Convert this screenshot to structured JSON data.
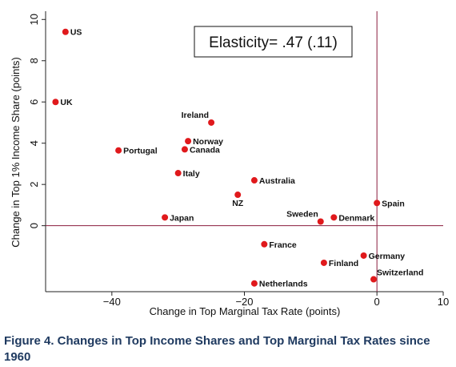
{
  "figure_caption": "Figure 4. Changes in Top Income Shares and Top Marginal Tax Rates since 1960",
  "colors": {
    "point": "#e0191c",
    "reference_line": "#8a1c3d",
    "axis": "#222222"
  },
  "chart_data": {
    "type": "scatter",
    "xlabel": "Change in Top Marginal Tax Rate (points)",
    "ylabel": "Change in Top 1% Income Share (points)",
    "xlim": [
      -50,
      10
    ],
    "ylim": [
      -3.2,
      10.4
    ],
    "x_ticks": [
      -40,
      -20,
      0,
      10
    ],
    "x_tick_labels": [
      "−40",
      "−20",
      "0",
      "10"
    ],
    "y_ticks": [
      0,
      2,
      4,
      6,
      8,
      10
    ],
    "y_tick_labels": [
      "0",
      "2",
      "4",
      "6",
      "8",
      "10"
    ],
    "grid": false,
    "reference_lines": {
      "x": 0,
      "y": 0
    },
    "annotation": "Elasticity= .47 (.11)",
    "points": [
      {
        "label": "US",
        "x": -47,
        "y": 9.4
      },
      {
        "label": "UK",
        "x": -48.5,
        "y": 6.0
      },
      {
        "label": "Ireland",
        "x": -25,
        "y": 5.0
      },
      {
        "label": "Norway",
        "x": -28.5,
        "y": 4.1
      },
      {
        "label": "Canada",
        "x": -29,
        "y": 3.7
      },
      {
        "label": "Portugal",
        "x": -39,
        "y": 3.65
      },
      {
        "label": "Italy",
        "x": -30,
        "y": 2.55
      },
      {
        "label": "Australia",
        "x": -18.5,
        "y": 2.2
      },
      {
        "label": "NZ",
        "x": -21,
        "y": 1.5
      },
      {
        "label": "Spain",
        "x": 0,
        "y": 1.1
      },
      {
        "label": "Japan",
        "x": -32,
        "y": 0.4
      },
      {
        "label": "Sweden",
        "x": -8.5,
        "y": 0.2
      },
      {
        "label": "Denmark",
        "x": -6.5,
        "y": 0.4
      },
      {
        "label": "France",
        "x": -17,
        "y": -0.9
      },
      {
        "label": "Germany",
        "x": -2,
        "y": -1.45
      },
      {
        "label": "Finland",
        "x": -8,
        "y": -1.8
      },
      {
        "label": "Switzerland",
        "x": -0.5,
        "y": -2.6
      },
      {
        "label": "Netherlands",
        "x": -18.5,
        "y": -2.8
      }
    ]
  }
}
